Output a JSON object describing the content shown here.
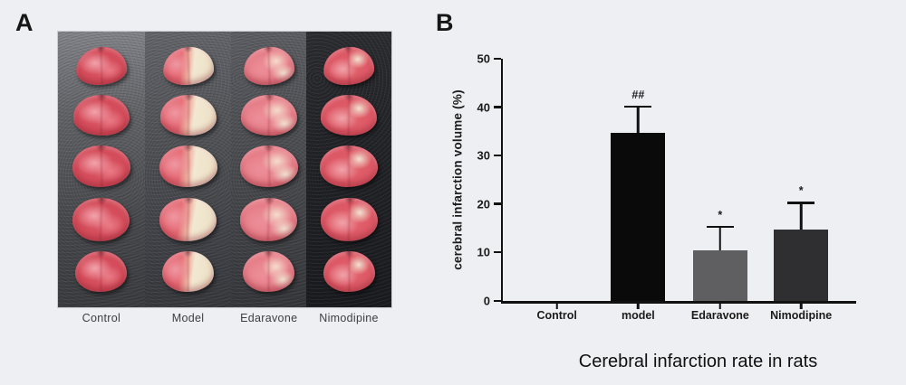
{
  "panel_a": {
    "label": "A",
    "columns": [
      "Control",
      "Model",
      "Edaravone",
      "Nimodipine"
    ],
    "rows_per_column": 5
  },
  "panel_b": {
    "label": "B"
  },
  "chart_data": {
    "type": "bar",
    "categories": [
      "Control",
      "model",
      "Edaravone",
      "Nimodipine"
    ],
    "values": [
      0,
      34.7,
      10.5,
      14.8
    ],
    "errors": [
      0,
      5.2,
      4.6,
      5.2
    ],
    "significance": [
      "",
      "##",
      "*",
      "*"
    ],
    "bar_colors": [
      "#000000",
      "#0a0a0a",
      "#5f5f61",
      "#2f2f31"
    ],
    "title": "Cerebral infarction rate in rats",
    "ylabel": "cerebral infarction volume (%)",
    "ylim": [
      0,
      50
    ],
    "yticks": [
      0,
      10,
      20,
      30,
      40,
      50
    ],
    "grid": false,
    "legend": false
  },
  "colors": {
    "page_background": "#edeff2",
    "axis": "#111111"
  }
}
